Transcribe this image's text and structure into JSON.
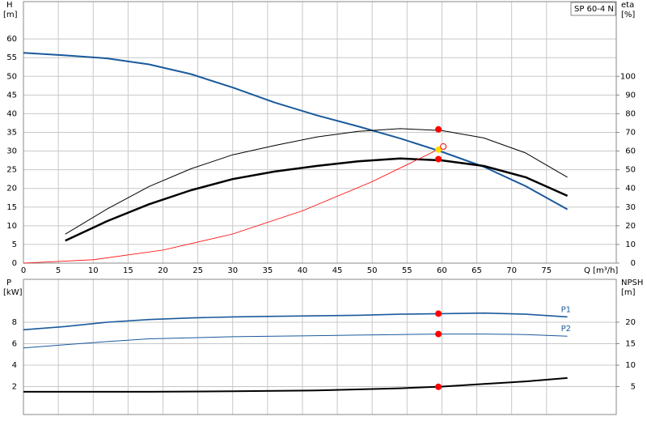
{
  "chart_data": [
    {
      "type": "line",
      "y_label": "H",
      "y_unit": "[m]",
      "y2_label": "eta",
      "y2_unit": "[%]",
      "x_label": "Q [m³/h]",
      "annotation": "SP 60-4 N",
      "xlim": [
        0,
        85
      ],
      "xticks": [
        0,
        5,
        10,
        15,
        20,
        25,
        30,
        35,
        40,
        45,
        50,
        55,
        60,
        65,
        70,
        75
      ],
      "ylim": [
        0,
        70
      ],
      "yticks": [
        0,
        5,
        10,
        15,
        20,
        25,
        30,
        35,
        40,
        45,
        50,
        55,
        60
      ],
      "y2lim": [
        0,
        140
      ],
      "y2ticks": [
        0,
        10,
        20,
        30,
        40,
        50,
        60,
        70,
        80,
        90,
        100
      ],
      "grid": true,
      "series": [
        {
          "color": "#1a5a9c",
          "line_width": 2,
          "x": [
            0,
            6,
            12,
            18,
            24,
            30,
            36,
            42,
            48,
            54,
            60,
            66,
            72,
            78
          ],
          "values": [
            56.3,
            55.6,
            54.8,
            53.2,
            50.6,
            47,
            43,
            39.6,
            36.6,
            33.4,
            29.8,
            25.8,
            20.6,
            14.4
          ]
        },
        {
          "color": "#000000",
          "line_width": 1,
          "axis": "y2",
          "x": [
            6,
            12,
            18,
            24,
            30,
            36,
            42,
            48,
            54,
            60,
            66,
            72,
            78
          ],
          "values": [
            15.5,
            29,
            41,
            50.5,
            58,
            63,
            67.5,
            70.5,
            72,
            71,
            67,
            59,
            46
          ]
        },
        {
          "color": "#000000",
          "line_width": 2.5,
          "axis": "y2",
          "x": [
            6,
            12,
            18,
            24,
            30,
            36,
            42,
            48,
            54,
            60,
            66,
            72,
            78
          ],
          "values": [
            12,
            22.5,
            31.5,
            39,
            45,
            49,
            52,
            54.5,
            56,
            55,
            52,
            46,
            36
          ]
        },
        {
          "color": "#ff0000",
          "line_width": 0.8,
          "x": [
            0,
            10,
            20,
            30,
            40,
            50,
            60
          ],
          "values": [
            0,
            0.9,
            3.5,
            7.8,
            14,
            21.8,
            30.9
          ]
        }
      ],
      "markers": [
        {
          "x": 59.5,
          "y": 71.6,
          "axis": "y2",
          "color": "#ff0000"
        },
        {
          "x": 59.5,
          "y": 55.7,
          "axis": "y2",
          "color": "#ff0000"
        },
        {
          "x": 59.5,
          "y": 30.4,
          "color": "#ffdd00"
        },
        {
          "x": 60.2,
          "y": 31.2,
          "color": "#ff0000",
          "hollow": true
        }
      ]
    },
    {
      "type": "line",
      "y_label": "P",
      "y_unit": "[kW]",
      "y2_label": "NPSH",
      "y2_unit": "[m]",
      "xlim": [
        0,
        85
      ],
      "xticks": [
        0,
        5,
        10,
        15,
        20,
        25,
        30,
        35,
        40,
        45,
        50,
        55,
        60,
        65,
        70,
        75
      ],
      "ylim": [
        0,
        12
      ],
      "yticks": [
        2,
        4,
        6,
        8
      ],
      "y2lim": [
        0,
        30
      ],
      "y2ticks": [
        5,
        10,
        15,
        20
      ],
      "grid": true,
      "series": [
        {
          "name": "P1",
          "color": "#1a5a9c",
          "line_width": 1.6,
          "x": [
            0,
            6,
            12,
            18,
            24,
            30,
            36,
            42,
            48,
            54,
            60,
            66,
            72,
            78
          ],
          "values": [
            7.3,
            7.6,
            8.0,
            8.25,
            8.4,
            8.5,
            8.55,
            8.6,
            8.65,
            8.75,
            8.8,
            8.85,
            8.75,
            8.5
          ]
        },
        {
          "name": "P2",
          "color": "#1a5a9c",
          "line_width": 1,
          "x": [
            0,
            6,
            12,
            18,
            24,
            30,
            36,
            42,
            48,
            54,
            60,
            66,
            72,
            78
          ],
          "values": [
            5.6,
            5.9,
            6.2,
            6.45,
            6.55,
            6.65,
            6.7,
            6.75,
            6.8,
            6.85,
            6.9,
            6.9,
            6.85,
            6.7
          ]
        },
        {
          "color": "#000000",
          "line_width": 2,
          "axis": "y2",
          "x": [
            0,
            6,
            18,
            30,
            42,
            54,
            60,
            66,
            72,
            78
          ],
          "values": [
            3.8,
            3.8,
            3.8,
            3.9,
            4.1,
            4.6,
            5.0,
            5.6,
            6.2,
            7.0
          ]
        }
      ],
      "markers": [
        {
          "x": 59.5,
          "y": 8.8,
          "color": "#ff0000"
        },
        {
          "x": 59.5,
          "y": 6.9,
          "color": "#ff0000"
        },
        {
          "x": 59.5,
          "y": 4.95,
          "axis": "y2",
          "color": "#ff0000"
        }
      ]
    }
  ]
}
